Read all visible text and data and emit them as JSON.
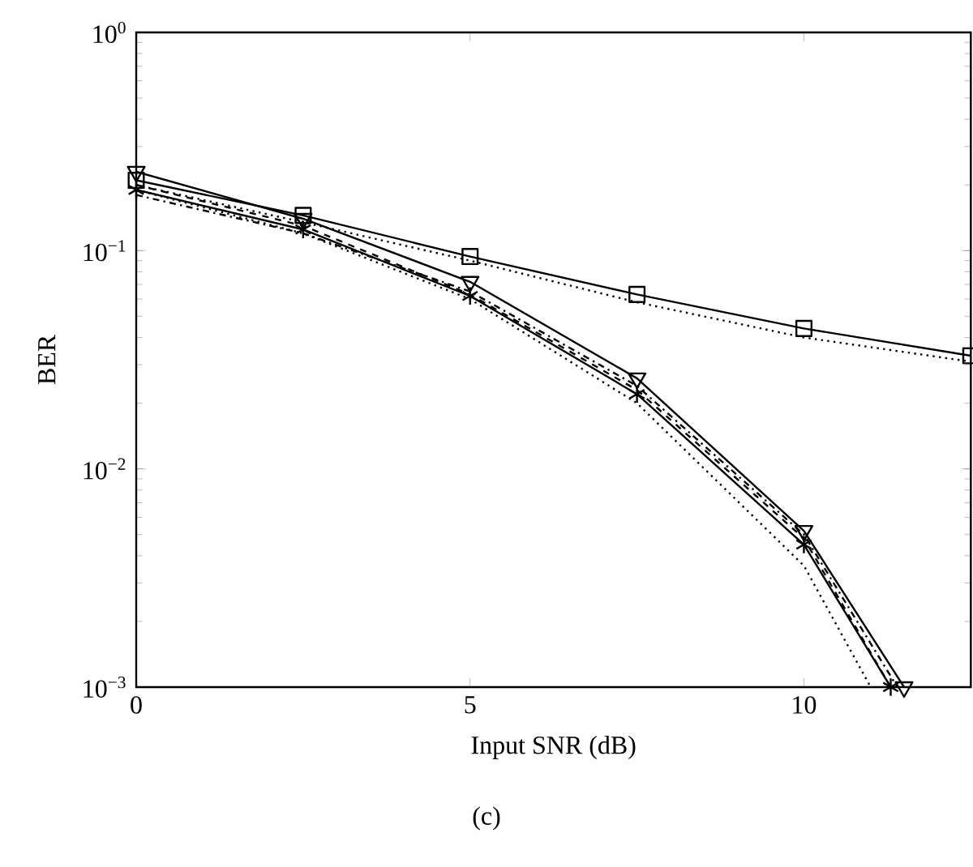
{
  "chart_data": {
    "type": "line",
    "xlabel": "Input SNR (dB)",
    "ylabel": "BER",
    "log": "y",
    "xlim": [
      0,
      12.5
    ],
    "ylim": [
      0.001,
      1
    ],
    "xticks": [
      0,
      5,
      10
    ],
    "yticks": [
      {
        "value": 0.001,
        "label": "10$^{−3}$"
      },
      {
        "value": 0.01,
        "label": "10$^{−2}$"
      },
      {
        "value": 0.1,
        "label": "10$^{−1}$"
      },
      {
        "value": 1,
        "label": "10$^{0}$"
      }
    ],
    "grid": false,
    "series": [
      {
        "color": "#000000",
        "marker": "square",
        "line_style": "solid",
        "x": [
          0,
          2.5,
          5,
          7.5,
          10,
          12.5
        ],
        "values": [
          0.21,
          0.145,
          0.094,
          0.063,
          0.044,
          0.033
        ]
      },
      {
        "color": "#000000",
        "marker": "none",
        "line_style": "dotted",
        "x": [
          0,
          2.5,
          5,
          7.5,
          10,
          12.5
        ],
        "values": [
          0.2,
          0.135,
          0.09,
          0.058,
          0.04,
          0.031
        ]
      },
      {
        "color": "#000000",
        "marker": "triangle",
        "line_style": "solid",
        "x": [
          0,
          2.5,
          5,
          7.5,
          10,
          11.5
        ],
        "values": [
          0.23,
          0.14,
          0.072,
          0.026,
          0.0052,
          0.001
        ]
      },
      {
        "color": "#000000",
        "marker": "cross",
        "line_style": "solid",
        "x": [
          0,
          2.5,
          5,
          7.5,
          10,
          11.3
        ],
        "values": [
          0.19,
          0.125,
          0.062,
          0.022,
          0.0045,
          0.001
        ]
      },
      {
        "color": "#000000",
        "marker": "none",
        "line_style": "dotted",
        "x": [
          0,
          2.5,
          5,
          7.5,
          10,
          11.0
        ],
        "values": [
          0.19,
          0.12,
          0.06,
          0.02,
          0.0036,
          0.001
        ]
      },
      {
        "color": "#000000",
        "marker": "none",
        "line_style": "dashed",
        "x": [
          0,
          2.5,
          5,
          7.5,
          10,
          11.3
        ],
        "values": [
          0.2,
          0.13,
          0.063,
          0.023,
          0.0048,
          0.001
        ]
      },
      {
        "color": "#000000",
        "marker": "none",
        "line_style": "dashdot",
        "x": [
          0,
          2.5,
          5,
          7.5,
          10,
          11.4
        ],
        "values": [
          0.18,
          0.12,
          0.065,
          0.024,
          0.005,
          0.001
        ]
      }
    ],
    "annotations": [
      "(c)"
    ]
  }
}
